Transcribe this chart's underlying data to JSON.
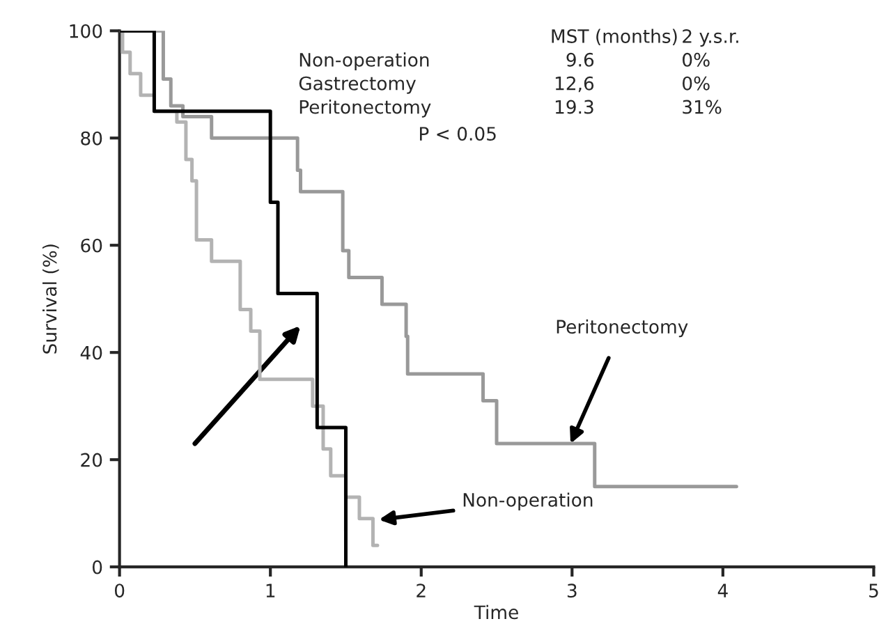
{
  "chart_data": {
    "type": "step",
    "xlabel": "Time",
    "ylabel": "Survival (%)",
    "xlim": [
      0,
      5
    ],
    "ylim": [
      0,
      100
    ],
    "xticks": [
      0,
      1,
      2,
      3,
      4,
      5
    ],
    "yticks": [
      0,
      20,
      40,
      60,
      80,
      100
    ],
    "grid": false,
    "legend": false,
    "series": [
      {
        "color": "#000000",
        "x": [
          0,
          0.23,
          1.0,
          1.05,
          1.31,
          1.5
        ],
        "values": [
          100,
          85,
          68,
          51,
          26,
          0
        ]
      },
      {
        "color": "#999999",
        "x": [
          0,
          0.29,
          0.34,
          0.42,
          0.61,
          1.18,
          1.2,
          1.48,
          1.52,
          1.74,
          1.9,
          1.91,
          2.41,
          2.5,
          3.15,
          4.09
        ],
        "values": [
          100,
          91,
          86,
          84,
          80,
          74,
          70,
          59,
          54,
          49,
          43,
          36,
          31,
          23,
          15,
          15
        ]
      },
      {
        "color": "#b3b3b3",
        "x": [
          0,
          0.02,
          0.07,
          0.14,
          0.23,
          0.38,
          0.44,
          0.48,
          0.51,
          0.61,
          0.8,
          0.87,
          0.93,
          1.28,
          1.35,
          1.4,
          1.5,
          1.59,
          1.68,
          1.71
        ],
        "values": [
          100,
          96,
          92,
          88,
          85,
          83,
          76,
          72,
          61,
          57,
          48,
          44,
          35,
          30,
          22,
          17,
          13,
          9,
          4,
          4
        ]
      }
    ],
    "annotations": [
      "MST (months)",
      "2 y.s.r.",
      "Non-operation",
      "9.6",
      "0%",
      "Gastrectomy",
      "12,6",
      "0%",
      "Peritonectomy",
      "19.3",
      "31%",
      "P < 0.05",
      {
        "text": "Peritonectomy",
        "x": 2.99,
        "y": 23
      },
      {
        "text": "Non-operation",
        "x": 1.72,
        "y": 8.8
      }
    ]
  }
}
